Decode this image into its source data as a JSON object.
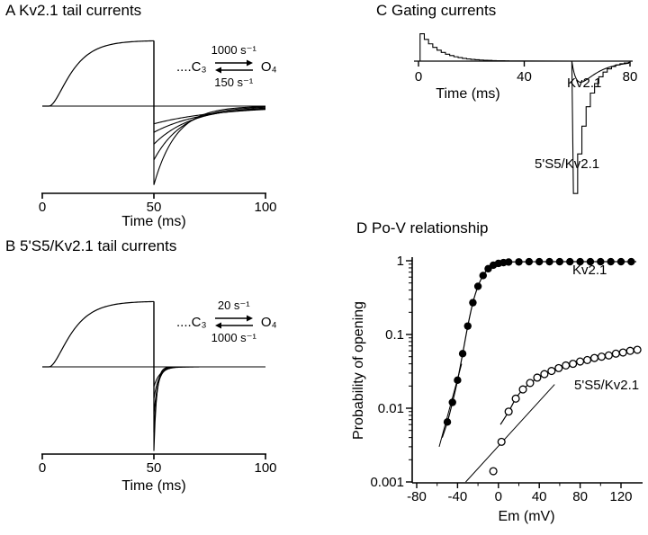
{
  "chart_data": [
    {
      "id": "A",
      "type": "line",
      "title": "A Kv2.1 tail currents",
      "xlabel": "Time (ms)",
      "xlim": [
        0,
        100
      ],
      "xticks": [
        0,
        50,
        100
      ],
      "kinetic_scheme": {
        "closed_state": "....C₃",
        "open_state": "O₄",
        "forward_rate": "1000 s⁻¹",
        "backward_rate": "150 s⁻¹"
      },
      "model": {
        "pulse_start_ms": 3,
        "pulse_end_ms": 50,
        "activation_tau_ms": 8,
        "activation_power": 2,
        "plateau": 1,
        "tail_amplitudes": [
          -1.2,
          -0.82,
          -0.58,
          -0.4,
          -0.27
        ],
        "tail_taus_ms": [
          10,
          13,
          17,
          22,
          30
        ]
      }
    },
    {
      "id": "B",
      "type": "line",
      "title": "B 5'S5/Kv2.1 tail currents",
      "xlabel": "Time (ms)",
      "xlim": [
        0,
        100
      ],
      "xticks": [
        0,
        50,
        100
      ],
      "kinetic_scheme": {
        "closed_state": "....C₃",
        "open_state": "O₄",
        "forward_rate": "20 s⁻¹",
        "backward_rate": "1000 s⁻¹"
      },
      "model": {
        "pulse_start_ms": 3,
        "pulse_end_ms": 50,
        "activation_tau_ms": 8,
        "activation_power": 2,
        "plateau": 1,
        "tail_amplitudes": [
          -1.28,
          -1.0,
          -0.72,
          -0.48,
          -0.3
        ],
        "tail_taus_ms": [
          1.2,
          1.5,
          1.9,
          2.3,
          2.8
        ]
      }
    },
    {
      "id": "C",
      "type": "line",
      "title": "C Gating currents",
      "xlabel": "Time (ms)",
      "xlim": [
        0,
        80
      ],
      "xticks": [
        0,
        40,
        80
      ],
      "series_labels": [
        "Kv2.1",
        "5'S5/Kv2.1"
      ],
      "model": {
        "on_peak": 0.95,
        "on_tau_ms": 7,
        "sample_ms": 1.6,
        "off_time_ms": 58,
        "kv21_off_amp": -1.6,
        "kv21_off_tau_ms": 7,
        "kv21_off_rise_ms": 2.5,
        "chimera_off_amp": -4.6,
        "chimera_off_tau_ms": 4.5
      }
    },
    {
      "id": "D",
      "type": "scatter",
      "title": "D Po-V relationship",
      "xlabel": "Em (mV)",
      "ylabel": "Probability of opening",
      "xlim": [
        -80,
        140
      ],
      "xticks": [
        -80,
        -40,
        0,
        40,
        80,
        120
      ],
      "yscale": "log",
      "yticks": [
        1,
        0.1,
        0.01,
        0.001
      ],
      "ytick_labels": [
        "1",
        "0.1",
        "0.01",
        "0.001"
      ],
      "series": [
        {
          "name": "Kv2.1",
          "marker": "filled-circle",
          "points": [
            [
              -50,
              0.0065
            ],
            [
              -45,
              0.012
            ],
            [
              -40,
              0.024
            ],
            [
              -35,
              0.055
            ],
            [
              -30,
              0.13
            ],
            [
              -25,
              0.27
            ],
            [
              -20,
              0.45
            ],
            [
              -15,
              0.63
            ],
            [
              -10,
              0.78
            ],
            [
              -5,
              0.87
            ],
            [
              0,
              0.92
            ],
            [
              5,
              0.945
            ],
            [
              10,
              0.96
            ],
            [
              20,
              0.965
            ],
            [
              30,
              0.97
            ],
            [
              40,
              0.97
            ],
            [
              50,
              0.97
            ],
            [
              60,
              0.97
            ],
            [
              70,
              0.97
            ],
            [
              80,
              0.97
            ],
            [
              90,
              0.97
            ],
            [
              100,
              0.97
            ],
            [
              110,
              0.97
            ],
            [
              120,
              0.97
            ],
            [
              130,
              0.97
            ]
          ]
        },
        {
          "name": "5'S5/Kv2.1",
          "marker": "open-circle",
          "points": [
            [
              -5,
              0.0014
            ],
            [
              3,
              0.0035
            ],
            [
              10,
              0.009
            ],
            [
              17,
              0.0135
            ],
            [
              24,
              0.018
            ],
            [
              31,
              0.022
            ],
            [
              38,
              0.026
            ],
            [
              45,
              0.029
            ],
            [
              52,
              0.032
            ],
            [
              59,
              0.035
            ],
            [
              66,
              0.038
            ],
            [
              73,
              0.04
            ],
            [
              80,
              0.043
            ],
            [
              87,
              0.045
            ],
            [
              94,
              0.048
            ],
            [
              101,
              0.05
            ],
            [
              108,
              0.052
            ],
            [
              115,
              0.055
            ],
            [
              122,
              0.057
            ],
            [
              129,
              0.06
            ],
            [
              136,
              0.062
            ]
          ]
        }
      ],
      "fit_lines": [
        {
          "series": "Kv2.1",
          "from": [
            -58,
            0.003
          ],
          "to": [
            -36,
            0.04
          ]
        },
        {
          "series": "5'S5/Kv2.1",
          "from": [
            -32,
            0.001
          ],
          "to": [
            55,
            0.021
          ]
        }
      ],
      "fit_curves": [
        {
          "series": "Kv2.1",
          "points": [
            [
              -55,
              0.004
            ],
            [
              -50,
              0.0065
            ],
            [
              -45,
              0.012
            ],
            [
              -40,
              0.024
            ],
            [
              -35,
              0.055
            ],
            [
              -30,
              0.13
            ],
            [
              -25,
              0.27
            ],
            [
              -20,
              0.45
            ],
            [
              -15,
              0.63
            ],
            [
              -10,
              0.78
            ],
            [
              -5,
              0.87
            ],
            [
              0,
              0.92
            ],
            [
              10,
              0.96
            ],
            [
              30,
              0.97
            ],
            [
              70,
              0.972
            ],
            [
              135,
              0.972
            ]
          ]
        },
        {
          "series": "5'S5/Kv2.1",
          "points": [
            [
              2,
              0.006
            ],
            [
              10,
              0.009
            ],
            [
              20,
              0.0155
            ],
            [
              35,
              0.024
            ],
            [
              55,
              0.033
            ],
            [
              80,
              0.043
            ],
            [
              105,
              0.052
            ],
            [
              136,
              0.063
            ]
          ]
        }
      ]
    }
  ]
}
